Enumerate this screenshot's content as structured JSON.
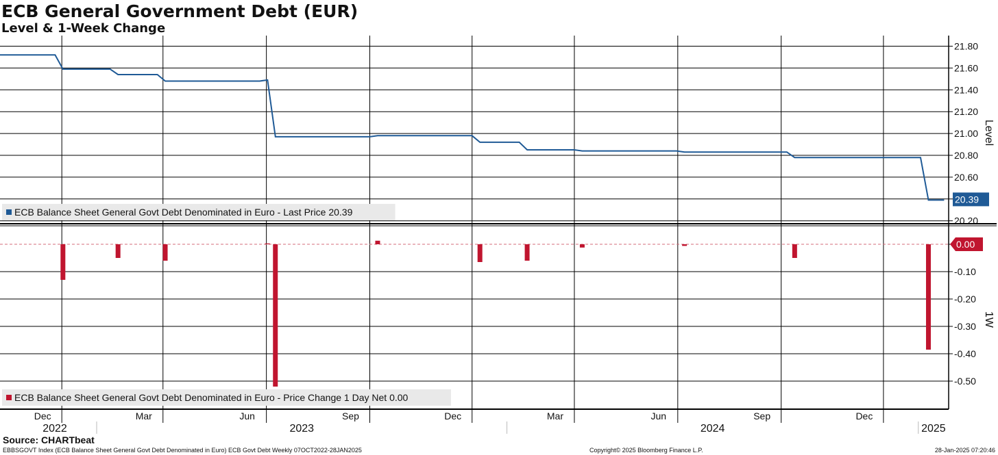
{
  "title": "ECB General Government Debt (EUR)",
  "subtitle": "Level & 1-Week Change",
  "source": "Source: CHARTbeat",
  "footer": {
    "left": "EBBSGOVT Index (ECB Balance Sheet General Govt Debt Denominated in Euro) ECB Govt Debt  Weekly 07OCT2022-28JAN2025",
    "center": "Copyright© 2025 Bloomberg Finance L.P.",
    "right": "28-Jan-2025 07:20:46"
  },
  "colors": {
    "level_line": "#1f5a96",
    "change_bars": "#c0152f",
    "grid": "#000000",
    "legend_bg": "#e9e9e9"
  },
  "chart_data": [
    {
      "type": "line",
      "panel": "top",
      "ylabel": "Level",
      "ylim": [
        20.15,
        21.85
      ],
      "yticks": [
        21.8,
        21.6,
        21.4,
        21.2,
        21.0,
        20.8,
        20.6,
        20.2
      ],
      "ytick_labels": [
        "21.80",
        "21.60",
        "21.40",
        "21.20",
        "21.00",
        "20.80",
        "20.60",
        "20.20"
      ],
      "last_value_label": "20.39",
      "legend": "ECB Balance Sheet General Govt Debt Denominated in Euro - Last Price 20.39",
      "series": [
        {
          "x": [
            "2022-10-07",
            "2022-11-25",
            "2022-12-02",
            "2022-12-16",
            "2023-01-13",
            "2023-01-20",
            "2023-02-24",
            "2023-03-03",
            "2023-03-31",
            "2023-05-26",
            "2023-06-02",
            "2023-06-09",
            "2023-06-16",
            "2023-08-04",
            "2023-09-01",
            "2023-09-08",
            "2023-11-24",
            "2023-12-01",
            "2023-12-08",
            "2024-01-12",
            "2024-01-19",
            "2024-02-09",
            "2024-03-01",
            "2024-03-08",
            "2024-05-31",
            "2024-06-07",
            "2024-08-16",
            "2024-08-30",
            "2024-09-06",
            "2024-09-13",
            "2024-12-06",
            "2024-12-13",
            "2024-12-20",
            "2025-01-03",
            "2025-01-10",
            "2025-01-17",
            "2025-01-24"
          ],
          "y": [
            21.72,
            21.72,
            21.59,
            21.59,
            21.59,
            21.54,
            21.54,
            21.48,
            21.48,
            21.48,
            21.49,
            20.97,
            20.97,
            20.97,
            20.97,
            20.98,
            20.98,
            20.98,
            20.92,
            20.92,
            20.85,
            20.85,
            20.85,
            20.84,
            20.84,
            20.83,
            20.83,
            20.83,
            20.83,
            20.78,
            20.78,
            20.78,
            20.78,
            20.78,
            20.39,
            20.39,
            20.39
          ]
        }
      ]
    },
    {
      "type": "bar",
      "panel": "bottom",
      "ylabel": "1W",
      "ylim": [
        -0.6,
        0.015
      ],
      "yticks": [
        0.0,
        -0.1,
        -0.2,
        -0.3,
        -0.4,
        -0.5
      ],
      "ytick_labels": [
        "0.00",
        "-0.10",
        "-0.20",
        "-0.30",
        "-0.40",
        "-0.50"
      ],
      "last_value_label": "0.00",
      "legend": "ECB Balance Sheet General Govt Debt Denominated in Euro - Price Change 1 Day Net 0.00",
      "series": [
        {
          "x": [
            "2022-12-02",
            "2023-01-20",
            "2023-03-03",
            "2023-06-02",
            "2023-06-09",
            "2023-09-08",
            "2023-12-08",
            "2024-01-19",
            "2024-03-08",
            "2024-06-07",
            "2024-09-13",
            "2025-01-10"
          ],
          "y": [
            -0.13,
            -0.05,
            -0.06,
            0.003,
            -0.52,
            0.013,
            -0.065,
            -0.06,
            -0.012,
            -0.006,
            -0.05,
            -0.385
          ]
        }
      ]
    }
  ],
  "x_axis": {
    "range": [
      "2022-10-07",
      "2025-01-28"
    ],
    "month_ticks": [
      {
        "label": "Dec",
        "date": "2022-12-01"
      },
      {
        "label": "Mar",
        "date": "2023-03-01"
      },
      {
        "label": "Jun",
        "date": "2023-06-01"
      },
      {
        "label": "Sep",
        "date": "2023-09-01"
      },
      {
        "label": "Dec",
        "date": "2023-12-01"
      },
      {
        "label": "Mar",
        "date": "2024-03-01"
      },
      {
        "label": "Jun",
        "date": "2024-06-01"
      },
      {
        "label": "Sep",
        "date": "2024-09-01"
      },
      {
        "label": "Dec",
        "date": "2024-12-01"
      }
    ],
    "year_labels": [
      {
        "label": "2022",
        "start": "2022-10-07",
        "end": "2023-01-01"
      },
      {
        "label": "2023",
        "start": "2023-01-01",
        "end": "2024-01-01"
      },
      {
        "label": "2024",
        "start": "2024-01-01",
        "end": "2025-01-01"
      },
      {
        "label": "2025",
        "start": "2025-01-01",
        "end": "2025-01-28"
      }
    ]
  }
}
